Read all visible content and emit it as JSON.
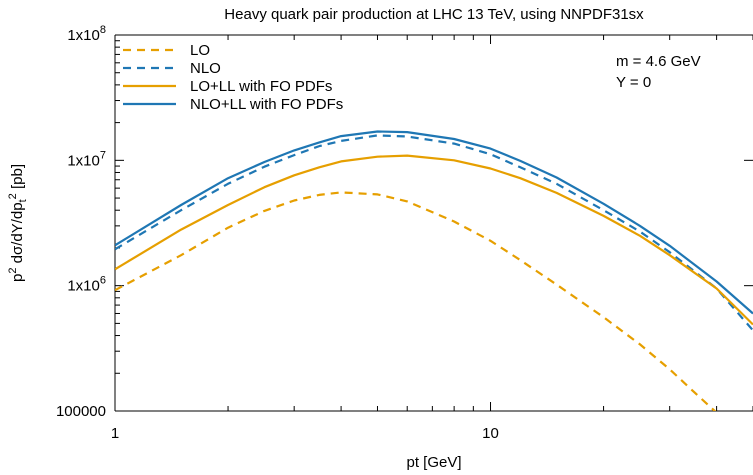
{
  "chart_data": {
    "type": "line",
    "title": "Heavy quark pair production at LHC 13 TeV, using NNPDF31sx",
    "xlabel": "pt  [GeV]",
    "ylabel": {
      "p": "p",
      "sup1": "2",
      "mid": " dσ/dY/dp",
      "sub2": "t",
      "sup2": "2",
      "unit": "  [pb]"
    },
    "xscale": "log",
    "yscale": "log",
    "xlim": [
      1,
      50
    ],
    "ylim": [
      100000,
      100000000
    ],
    "xticks": [
      {
        "value": 1,
        "label": "1"
      },
      {
        "value": 10,
        "label": "10"
      }
    ],
    "yticks": [
      {
        "value": 100000,
        "label": "100000"
      },
      {
        "value": 1000000,
        "label": "1x10",
        "exp": "6"
      },
      {
        "value": 10000000,
        "label": "1x10",
        "exp": "7"
      },
      {
        "value": 100000000,
        "label": "1x10",
        "exp": "8"
      }
    ],
    "grid": false,
    "legend_position": "top-left",
    "annotations": [
      "m = 4.6 GeV",
      "Y = 0"
    ],
    "series": [
      {
        "name": "LO",
        "color": "#e69f00",
        "dash": "dashed",
        "x": [
          1,
          1.5,
          2,
          2.5,
          3,
          3.5,
          4,
          5,
          6,
          8,
          10,
          12,
          15,
          20,
          25,
          30,
          35,
          40,
          50
        ],
        "y": [
          920000,
          1750000,
          2900000,
          3950000,
          4780000,
          5300000,
          5550000,
          5350000,
          4700000,
          3250000,
          2280000,
          1600000,
          1020000,
          560000,
          340000,
          215000,
          140000,
          97000,
          52000
        ]
      },
      {
        "name": "NLO",
        "color": "#1f77b4",
        "dash": "dashed",
        "x": [
          1,
          1.5,
          2,
          2.5,
          3,
          3.5,
          4,
          5,
          6,
          8,
          10,
          12,
          15,
          20,
          25,
          30,
          40,
          50
        ],
        "y": [
          1950000,
          4000000,
          6500000,
          8900000,
          11000000,
          13000000,
          14300000,
          15800000,
          15500000,
          13600000,
          11200000,
          8800000,
          6500000,
          4000000,
          2700000,
          1850000,
          950000,
          440000
        ]
      },
      {
        "name": "LO+LL with FO PDFs",
        "color": "#e69f00",
        "dash": "solid",
        "x": [
          1,
          1.5,
          2,
          2.5,
          3,
          3.5,
          4,
          5,
          6,
          8,
          10,
          12,
          15,
          20,
          25,
          30,
          40,
          50
        ],
        "y": [
          1350000,
          2800000,
          4400000,
          6100000,
          7600000,
          8800000,
          9800000,
          10700000,
          10900000,
          10000000,
          8600000,
          7200000,
          5500000,
          3600000,
          2500000,
          1750000,
          950000,
          490000
        ]
      },
      {
        "name": "NLO+LL with FO PDFs",
        "color": "#1f77b4",
        "dash": "solid",
        "x": [
          1,
          1.5,
          2,
          2.5,
          3,
          3.5,
          4,
          5,
          6,
          8,
          10,
          12,
          15,
          20,
          25,
          30,
          40,
          50
        ],
        "y": [
          2100000,
          4400000,
          7200000,
          9700000,
          12000000,
          13900000,
          15600000,
          17000000,
          16800000,
          14800000,
          12400000,
          9900000,
          7300000,
          4500000,
          3000000,
          2080000,
          1080000,
          600000
        ]
      }
    ]
  }
}
